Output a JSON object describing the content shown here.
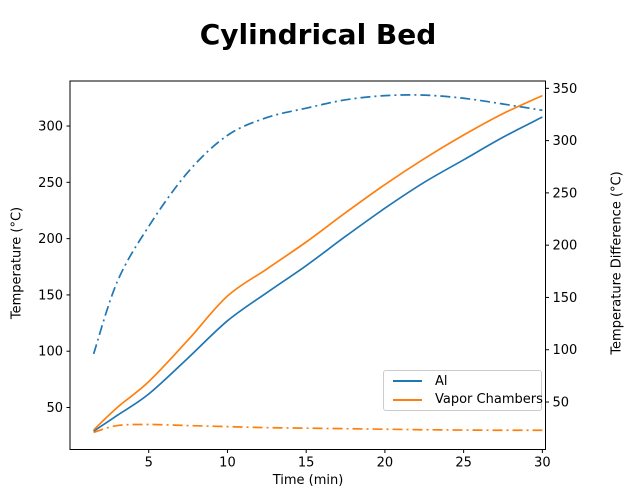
{
  "chart_data": {
    "type": "line",
    "title": "Cylindrical Bed",
    "xlabel": "Time (min)",
    "ylabel_left": "Temperature (°C)",
    "ylabel_right": "Temperature Difference (°C)",
    "x_range": [
      0,
      30.2
    ],
    "y_range_left": [
      12.7,
      340
    ],
    "y_range_right": [
      4.6,
      357
    ],
    "xticks": [
      5,
      10,
      15,
      20,
      25,
      30
    ],
    "yticks_left": [
      50,
      100,
      150,
      200,
      250,
      300
    ],
    "yticks_right": [
      50,
      100,
      150,
      200,
      250,
      300,
      350
    ],
    "grid": false,
    "legend_position": "lower right",
    "x": [
      1.5,
      3,
      5,
      7.5,
      10,
      12.5,
      15,
      17.5,
      20,
      22.5,
      25,
      27.5,
      30
    ],
    "series": [
      {
        "id": "al",
        "name": "Al",
        "axis": "left",
        "line_style": "solid",
        "color": "#1f77b4",
        "in_legend": true,
        "values": [
          29,
          43,
          62,
          94,
          127,
          152,
          176,
          202,
          227,
          250,
          270,
          290,
          308
        ]
      },
      {
        "id": "vapor-chambers",
        "name": "Vapor Chambers",
        "axis": "left",
        "line_style": "solid",
        "color": "#ff7f0e",
        "in_legend": true,
        "values": [
          30,
          50,
          73,
          110,
          149,
          173,
          197,
          223,
          248,
          271,
          292,
          311,
          327
        ]
      },
      {
        "id": "al-difference-dashdot",
        "name": "",
        "axis": "right",
        "line_style": "dashdot",
        "color": "#1f77b4",
        "in_legend": false,
        "values": [
          96,
          165,
          218,
          270,
          305,
          322,
          331,
          339,
          343,
          343.5,
          340.5,
          335,
          329
        ]
      },
      {
        "id": "vapor-chambers-difference-dashdot",
        "name": "",
        "axis": "right",
        "line_style": "dashdot",
        "color": "#ff7f0e",
        "in_legend": false,
        "values": [
          21,
          27.5,
          28.5,
          27.5,
          26.5,
          25.5,
          25,
          24.5,
          24,
          23.5,
          23.2,
          23,
          23
        ]
      }
    ]
  }
}
